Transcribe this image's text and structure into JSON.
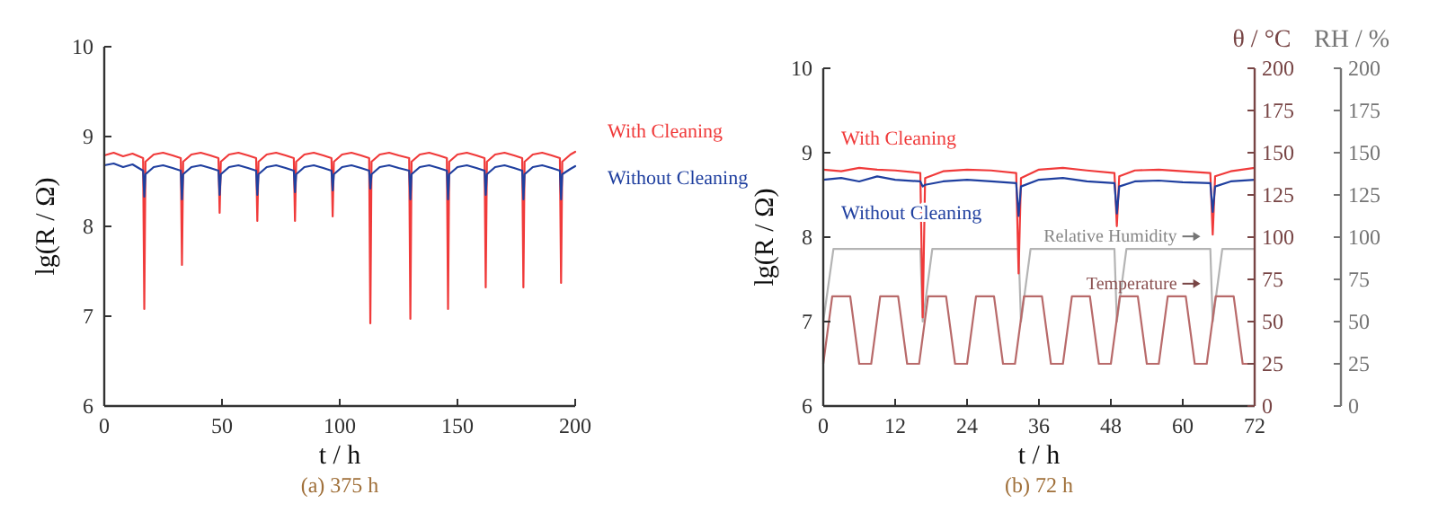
{
  "chart_data": [
    {
      "type": "line",
      "title": "(a) 375 h",
      "xlabel": "t / h",
      "ylabel": "lg(R / Ω)",
      "xlim": [
        0,
        200
      ],
      "xticks": [
        0,
        50,
        100,
        150,
        200
      ],
      "ylim": [
        6,
        10
      ],
      "yticks": [
        6,
        7,
        8,
        9,
        10
      ],
      "series": [
        {
          "name": "With Cleaning",
          "color": "#f03a3a",
          "x": [
            0,
            4,
            8,
            12,
            16.5,
            17,
            17.5,
            21,
            25,
            29,
            32.5,
            33,
            33.5,
            37,
            41,
            45,
            48.5,
            49,
            49.5,
            53,
            57,
            61,
            64.5,
            65,
            65.5,
            69,
            73,
            77,
            80.5,
            81,
            81.5,
            85,
            89,
            93,
            96.5,
            97,
            97.5,
            101,
            105,
            109,
            112.5,
            113,
            113.5,
            117,
            121,
            125,
            129.5,
            130,
            130.5,
            134,
            138,
            142,
            145.5,
            146,
            146.5,
            150,
            154,
            158,
            161.5,
            162,
            162.5,
            166,
            170,
            174,
            177.5,
            178,
            178.5,
            182,
            186,
            190,
            193.5,
            194,
            194.5,
            198,
            200
          ],
          "values": [
            8.79,
            8.82,
            8.78,
            8.81,
            8.76,
            7.08,
            8.72,
            8.8,
            8.82,
            8.79,
            8.76,
            7.57,
            8.72,
            8.8,
            8.82,
            8.79,
            8.76,
            8.15,
            8.72,
            8.8,
            8.82,
            8.79,
            8.76,
            8.06,
            8.72,
            8.8,
            8.82,
            8.79,
            8.76,
            8.06,
            8.72,
            8.8,
            8.82,
            8.79,
            8.76,
            8.11,
            8.72,
            8.8,
            8.82,
            8.79,
            8.76,
            6.92,
            8.72,
            8.8,
            8.82,
            8.79,
            8.76,
            6.97,
            8.72,
            8.8,
            8.82,
            8.79,
            8.76,
            7.08,
            8.72,
            8.8,
            8.82,
            8.79,
            8.76,
            7.32,
            8.72,
            8.8,
            8.82,
            8.79,
            8.76,
            7.32,
            8.72,
            8.8,
            8.82,
            8.79,
            8.76,
            7.37,
            8.72,
            8.8,
            8.83
          ]
        },
        {
          "name": "Without Cleaning",
          "color": "#1f3f9f",
          "x": [
            0,
            4,
            8,
            12,
            16.5,
            17,
            17.5,
            21,
            25,
            29,
            32.5,
            33,
            33.5,
            37,
            41,
            45,
            48.5,
            49,
            49.5,
            53,
            57,
            61,
            64.5,
            65,
            65.5,
            69,
            73,
            77,
            80.5,
            81,
            81.5,
            85,
            89,
            93,
            96.5,
            97,
            97.5,
            101,
            105,
            109,
            112.5,
            113,
            113.5,
            117,
            121,
            125,
            129.5,
            130,
            130.5,
            134,
            138,
            142,
            145.5,
            146,
            146.5,
            150,
            154,
            158,
            161.5,
            162,
            162.5,
            166,
            170,
            174,
            177.5,
            178,
            178.5,
            182,
            186,
            190,
            193.5,
            194,
            194.5,
            198,
            200
          ],
          "values": [
            8.68,
            8.7,
            8.66,
            8.69,
            8.62,
            8.33,
            8.58,
            8.66,
            8.68,
            8.65,
            8.62,
            8.3,
            8.58,
            8.66,
            8.68,
            8.65,
            8.62,
            8.35,
            8.58,
            8.66,
            8.68,
            8.65,
            8.62,
            8.35,
            8.58,
            8.66,
            8.68,
            8.65,
            8.62,
            8.38,
            8.58,
            8.66,
            8.68,
            8.65,
            8.62,
            8.4,
            8.58,
            8.66,
            8.68,
            8.65,
            8.62,
            8.42,
            8.58,
            8.66,
            8.68,
            8.65,
            8.62,
            8.3,
            8.58,
            8.66,
            8.68,
            8.65,
            8.62,
            8.3,
            8.58,
            8.66,
            8.68,
            8.65,
            8.62,
            8.35,
            8.58,
            8.66,
            8.68,
            8.65,
            8.62,
            8.3,
            8.58,
            8.66,
            8.68,
            8.65,
            8.62,
            8.3,
            8.58,
            8.64,
            8.67
          ]
        }
      ]
    },
    {
      "type": "line",
      "title": "(b) 72 h",
      "xlabel": "t / h",
      "ylabel": "lg(R / Ω)",
      "y2label": "θ / °C",
      "y3label": "RH / %",
      "xlim": [
        0,
        72
      ],
      "xticks": [
        0,
        12,
        24,
        36,
        48,
        60,
        72
      ],
      "ylim": [
        6,
        10
      ],
      "yticks": [
        6,
        7,
        8,
        9,
        10
      ],
      "y2lim": [
        0,
        200
      ],
      "y2ticks": [
        0,
        25,
        50,
        75,
        100,
        125,
        150,
        175,
        200
      ],
      "y3lim": [
        0,
        200
      ],
      "y3ticks": [
        0,
        25,
        50,
        75,
        100,
        125,
        150,
        175,
        200
      ],
      "series": [
        {
          "name": "With Cleaning",
          "color": "#f03a3a",
          "x": [
            0,
            3,
            6,
            9,
            12,
            16.2,
            16.6,
            17,
            20,
            24,
            28,
            32.2,
            32.6,
            33,
            36,
            40,
            44,
            48.6,
            49,
            49.4,
            52,
            56,
            60,
            64.6,
            65,
            65.4,
            68,
            72
          ],
          "values": [
            8.8,
            8.78,
            8.82,
            8.8,
            8.79,
            8.76,
            7.05,
            8.7,
            8.78,
            8.8,
            8.79,
            8.76,
            7.57,
            8.7,
            8.8,
            8.82,
            8.79,
            8.76,
            8.13,
            8.72,
            8.79,
            8.8,
            8.78,
            8.76,
            8.03,
            8.72,
            8.78,
            8.82
          ]
        },
        {
          "name": "Without Cleaning",
          "color": "#1f3f9f",
          "x": [
            0,
            3,
            6,
            9,
            12,
            16.2,
            16.6,
            17,
            20,
            24,
            28,
            32.2,
            32.6,
            33,
            36,
            40,
            44,
            48.6,
            49,
            49.4,
            52,
            56,
            60,
            64.6,
            65,
            65.4,
            68,
            72
          ],
          "values": [
            8.68,
            8.7,
            8.66,
            8.72,
            8.68,
            8.66,
            8.6,
            8.62,
            8.66,
            8.68,
            8.66,
            8.64,
            8.25,
            8.6,
            8.68,
            8.7,
            8.66,
            8.64,
            8.28,
            8.6,
            8.66,
            8.67,
            8.65,
            8.64,
            8.3,
            8.6,
            8.66,
            8.68
          ]
        },
        {
          "name": "Relative Humidity",
          "color": "#b4b4b4",
          "axis": "y3",
          "x": [
            0,
            1.7,
            16.2,
            16.6,
            18.2,
            32.6,
            33,
            34.6,
            48.6,
            49,
            50.6,
            64.6,
            65,
            66.6,
            72
          ],
          "values": [
            50,
            93,
            93,
            50,
            93,
            93,
            50,
            93,
            93,
            50,
            93,
            93,
            50,
            93,
            93
          ]
        },
        {
          "name": "Temperature",
          "color": "#b86a6a",
          "axis": "y2",
          "x": [
            0,
            1.5,
            4.5,
            6,
            8,
            9.5,
            12.5,
            14,
            16,
            17.5,
            20.5,
            22,
            24,
            25.5,
            28.5,
            30,
            32,
            33.5,
            36.5,
            38,
            40,
            41.5,
            44.5,
            46,
            48,
            49.5,
            52.5,
            54,
            56,
            57.5,
            60.5,
            62,
            64,
            65.5,
            68.5,
            70,
            72
          ],
          "values": [
            25,
            65,
            65,
            25,
            25,
            65,
            65,
            25,
            25,
            65,
            65,
            25,
            25,
            65,
            65,
            25,
            25,
            65,
            65,
            25,
            25,
            65,
            65,
            25,
            25,
            65,
            65,
            25,
            25,
            65,
            65,
            25,
            25,
            65,
            65,
            25,
            25
          ]
        }
      ]
    }
  ]
}
